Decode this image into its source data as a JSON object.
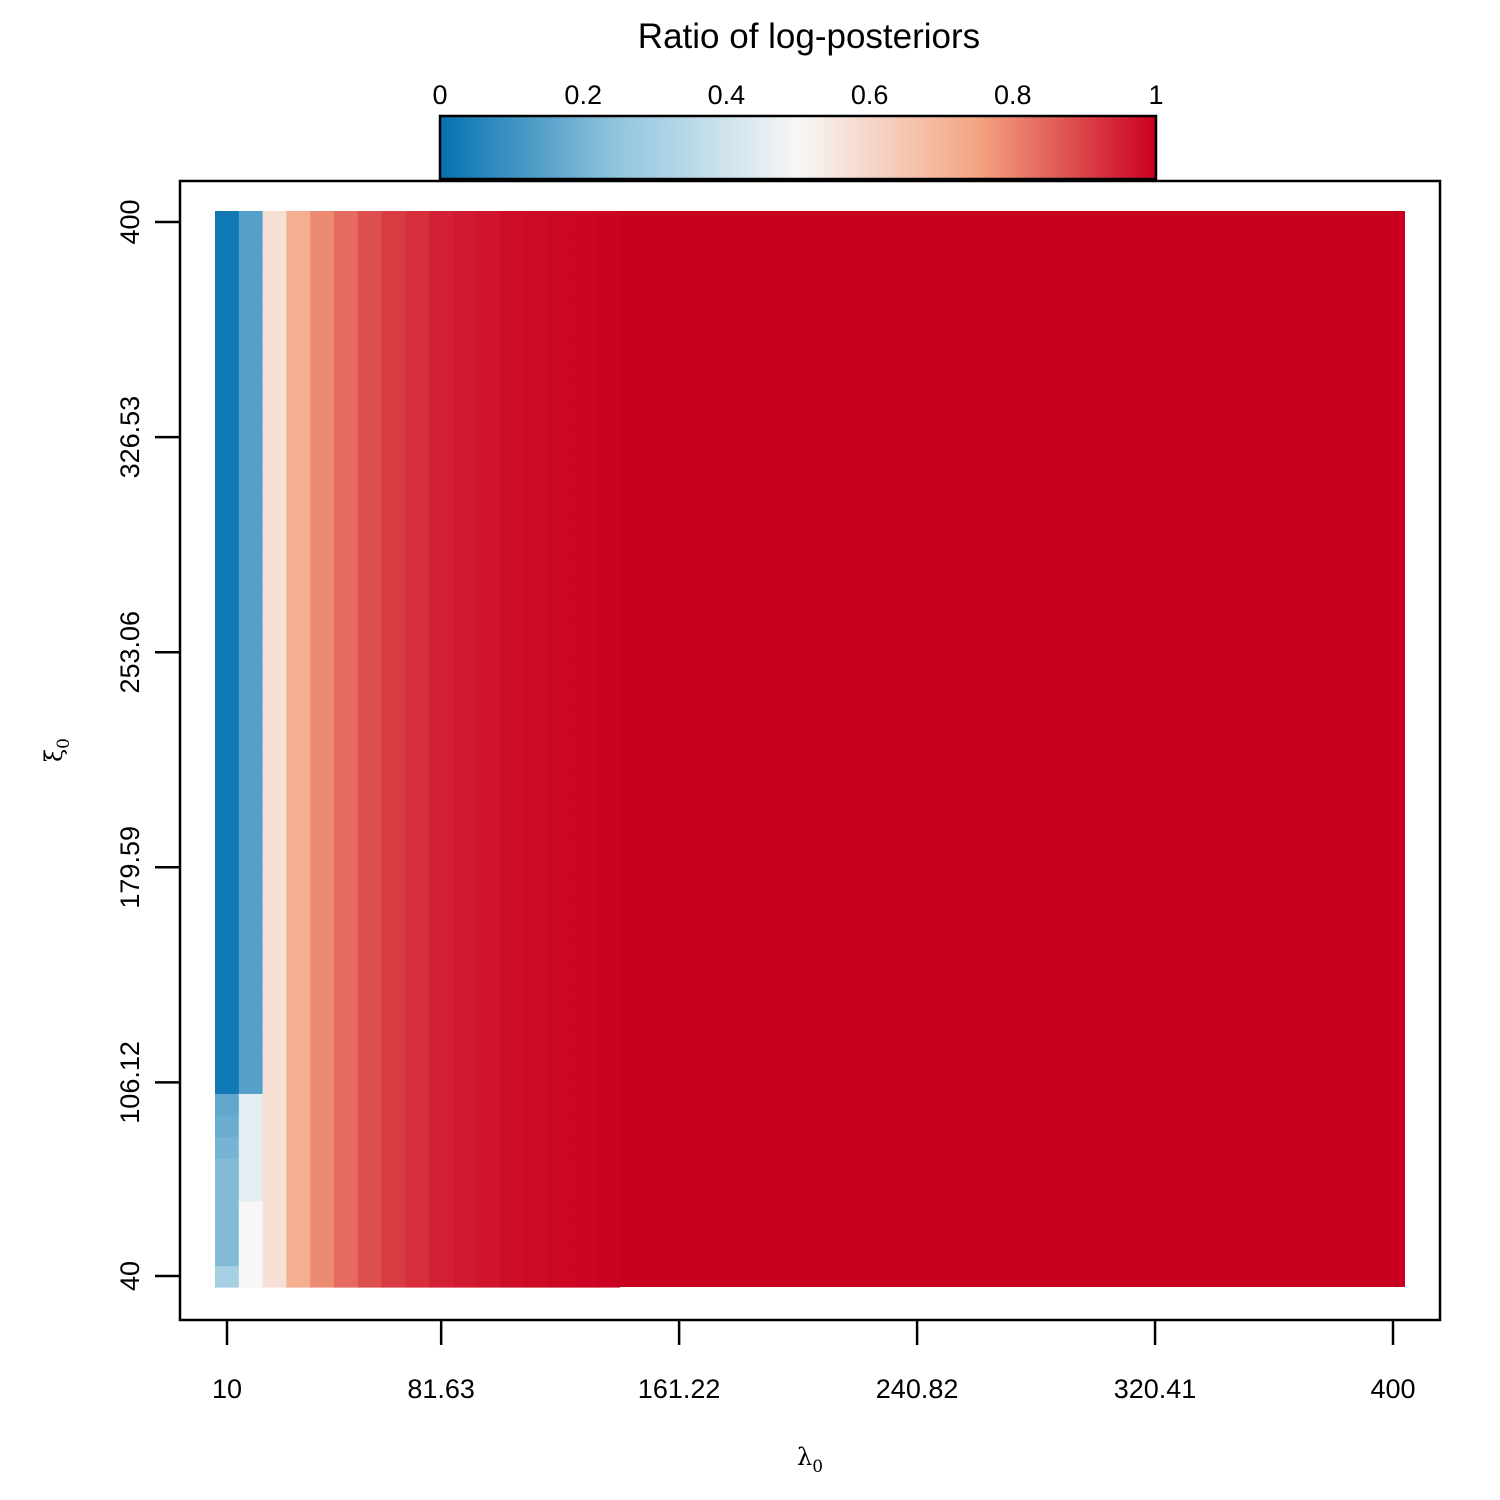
{
  "chart_data": {
    "type": "heatmap",
    "title": "Ratio of log-posteriors",
    "xlabel": "λ0",
    "ylabel": "ξ0",
    "x_axis": {
      "ticks": [
        10,
        81.63,
        161.22,
        240.82,
        320.41,
        400
      ],
      "tick_labels": [
        "10",
        "81.63",
        "161.22",
        "240.82",
        "320.41",
        "400"
      ],
      "range": [
        10,
        400
      ]
    },
    "y_axis": {
      "ticks": [
        40,
        106.12,
        179.59,
        253.06,
        326.53,
        400
      ],
      "tick_labels": [
        "40",
        "106.12",
        "179.59",
        "253.06",
        "326.53",
        "400"
      ],
      "range": [
        40,
        400
      ]
    },
    "colorbar": {
      "range": [
        0,
        1
      ],
      "ticks": [
        0,
        0.2,
        0.4,
        0.6,
        0.8,
        1
      ],
      "tick_labels": [
        "0",
        "0.2",
        "0.4",
        "0.6",
        "0.8",
        "1"
      ],
      "palette": [
        "#0571b0",
        "#92c5de",
        "#f7f7f7",
        "#f4a582",
        "#ca0020"
      ]
    },
    "grid": {
      "nx": 50,
      "ny": 50
    },
    "columns": [
      {
        "lambda0": 10.0,
        "ratio_high_xi": 0.02,
        "ratio_low_xi": [
          0.3,
          0.22,
          0.22,
          0.22,
          0.22,
          0.22,
          0.2,
          0.18,
          0.16
        ]
      },
      {
        "lambda0": 17.96,
        "ratio_high_xi": 0.14,
        "ratio_low_xi": [
          0.5,
          0.5,
          0.5,
          0.5,
          0.45,
          0.45,
          0.45,
          0.45,
          0.45
        ]
      },
      {
        "lambda0": 25.92,
        "ratio_high_xi": 0.57,
        "ratio_low_xi": []
      },
      {
        "lambda0": 33.88,
        "ratio_high_xi": 0.72,
        "ratio_low_xi": []
      },
      {
        "lambda0": 41.84,
        "ratio_high_xi": 0.79,
        "ratio_low_xi": []
      },
      {
        "lambda0": 49.8,
        "ratio_high_xi": 0.84,
        "ratio_low_xi": []
      },
      {
        "lambda0": 57.76,
        "ratio_high_xi": 0.88,
        "ratio_low_xi": []
      },
      {
        "lambda0": 65.71,
        "ratio_high_xi": 0.91,
        "ratio_low_xi": []
      },
      {
        "lambda0": 73.67,
        "ratio_high_xi": 0.93,
        "ratio_low_xi": []
      },
      {
        "lambda0": 81.63,
        "ratio_high_xi": 0.95,
        "ratio_low_xi": []
      },
      {
        "lambda0": 89.59,
        "ratio_high_xi": 0.96,
        "ratio_low_xi": []
      },
      {
        "lambda0": 97.55,
        "ratio_high_xi": 0.97,
        "ratio_low_xi": []
      },
      {
        "lambda0": 105.51,
        "ratio_high_xi": 0.98,
        "ratio_low_xi": []
      },
      {
        "lambda0": 113.47,
        "ratio_high_xi": 0.985,
        "ratio_low_xi": []
      },
      {
        "lambda0": 121.43,
        "ratio_high_xi": 0.99,
        "ratio_low_xi": []
      },
      {
        "lambda0": 129.39,
        "ratio_high_xi": 0.993,
        "ratio_low_xi": []
      },
      {
        "lambda0": 137.35,
        "ratio_high_xi": 0.996,
        "ratio_low_xi": []
      }
    ],
    "rest_value": 1.0
  }
}
